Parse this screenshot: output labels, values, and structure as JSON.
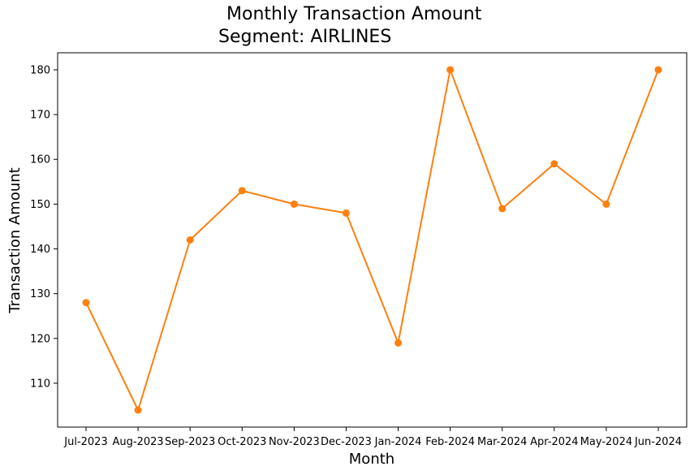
{
  "chart_data": {
    "type": "line",
    "title": "Monthly Transaction Amount",
    "subtitle": "Segment: AIRLINES",
    "xlabel": "Month",
    "ylabel": "Transaction Amount",
    "categories": [
      "Jul-2023",
      "Aug-2023",
      "Sep-2023",
      "Oct-2023",
      "Nov-2023",
      "Dec-2023",
      "Jan-2024",
      "Feb-2024",
      "Mar-2024",
      "Apr-2024",
      "May-2024",
      "Jun-2024"
    ],
    "series": [
      {
        "values": [
          128,
          104,
          142,
          153,
          150,
          148,
          119,
          180,
          149,
          159,
          150,
          180
        ],
        "color": "#ff7f0e",
        "marker": "circle"
      }
    ],
    "yticks": [
      110,
      120,
      130,
      140,
      150,
      160,
      170,
      180
    ],
    "ylim": [
      100.2,
      183.8
    ],
    "grid": false,
    "legend": "none"
  }
}
